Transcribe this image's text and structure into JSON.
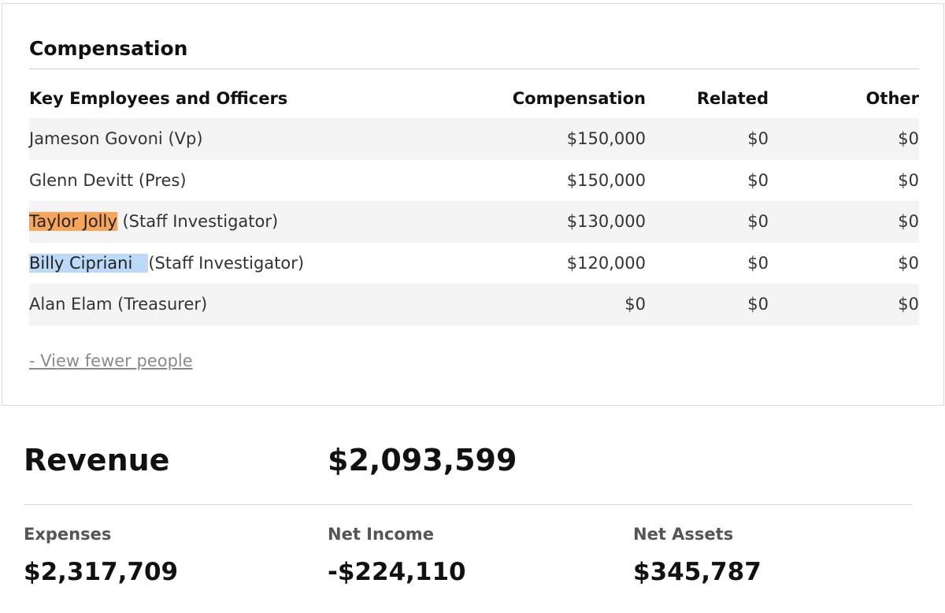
{
  "compensation": {
    "title": "Compensation",
    "headers": {
      "name": "Key Employees and Officers",
      "compensation": "Compensation",
      "related": "Related",
      "other": "Other"
    },
    "rows": [
      {
        "name": "Jameson Govoni",
        "role": " (Vp)",
        "compensation": "$150,000",
        "related": "$0",
        "other": "$0"
      },
      {
        "name": "Glenn Devitt",
        "role": " (Pres)",
        "compensation": "$150,000",
        "related": "$0",
        "other": "$0"
      },
      {
        "name": "Taylor Jolly",
        "role": " (Staff Investigator)",
        "compensation": "$130,000",
        "related": "$0",
        "other": "$0"
      },
      {
        "name": "Billy Cipriani",
        "role": "(Staff Investigator)",
        "compensation": "$120,000",
        "related": "$0",
        "other": "$0"
      },
      {
        "name": "Alan Elam",
        "role": " (Treasurer)",
        "compensation": "$0",
        "related": "$0",
        "other": "$0"
      }
    ],
    "view_fewer_label": "- View fewer people",
    "highlight_colors": {
      "orange": "#f6a55b",
      "blue": "#bcd9f8"
    }
  },
  "financials": {
    "revenue_label": "Revenue",
    "revenue_value": "$2,093,599",
    "expenses_label": "Expenses",
    "expenses_value": "$2,317,709",
    "net_income_label": "Net Income",
    "net_income_value": "-$224,110",
    "net_assets_label": "Net Assets",
    "net_assets_value": "$345,787"
  }
}
